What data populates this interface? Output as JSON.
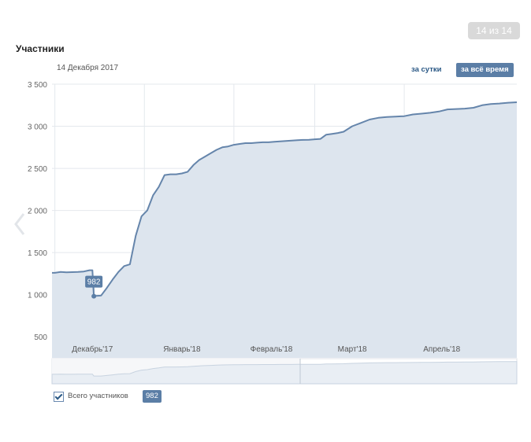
{
  "header": {
    "counter": "14 из 14",
    "title": "Участники",
    "date": "14 Декабря 2017",
    "tabs": [
      {
        "label": "за сутки",
        "active": false
      },
      {
        "label": "за всё время",
        "active": true
      }
    ]
  },
  "legend": {
    "label": "Всего участников",
    "value": "982",
    "checked": true
  },
  "colors": {
    "line": "#6585ab",
    "fill": "#dde5ee",
    "grid": "#e4e8ed",
    "accent": "#5b7ea6"
  },
  "chart_data": {
    "type": "area",
    "title": "Участники",
    "xlabel": "",
    "ylabel": "",
    "ylim": [
      250,
      3500
    ],
    "yticks": [
      500,
      1000,
      1500,
      2000,
      2500,
      3000,
      3500
    ],
    "ytick_labels": [
      "500",
      "1 000",
      "1 500",
      "2 000",
      "2 500",
      "3 000",
      "3 500"
    ],
    "xticks": [
      {
        "label": "Декабрь'17",
        "x": 13
      },
      {
        "label": "Январь'18",
        "x": 44
      },
      {
        "label": "Февраль'18",
        "x": 75
      },
      {
        "label": "Март'18",
        "x": 103
      },
      {
        "label": "Апрель'18",
        "x": 134
      }
    ],
    "xlim": [
      -1,
      160
    ],
    "grid": true,
    "highlight": {
      "x": 13.5,
      "y": 982,
      "label": "982"
    },
    "series": [
      {
        "name": "Всего участников",
        "x": [
          -1,
          0,
          2,
          4,
          6,
          8,
          10,
          12,
          13,
          13.5,
          14,
          16,
          18,
          20,
          22,
          24,
          26,
          28,
          30,
          32,
          34,
          36,
          38,
          40,
          42,
          44,
          46,
          48,
          50,
          52,
          54,
          56,
          58,
          60,
          62,
          64,
          66,
          68,
          70,
          72,
          74,
          76,
          78,
          80,
          82,
          84,
          86,
          88,
          90,
          92,
          94,
          96,
          98,
          100,
          103,
          106,
          109,
          112,
          115,
          118,
          121,
          124,
          127,
          130,
          133,
          136,
          139,
          142,
          145,
          148,
          151,
          154,
          157,
          160
        ],
        "values": [
          1260,
          1260,
          1270,
          1265,
          1268,
          1270,
          1275,
          1290,
          1290,
          982,
          985,
          990,
          1080,
          1180,
          1270,
          1340,
          1360,
          1700,
          1930,
          2000,
          2180,
          2280,
          2420,
          2430,
          2430,
          2440,
          2460,
          2540,
          2600,
          2640,
          2680,
          2720,
          2750,
          2760,
          2780,
          2790,
          2800,
          2800,
          2805,
          2810,
          2810,
          2815,
          2820,
          2825,
          2830,
          2835,
          2838,
          2840,
          2845,
          2850,
          2900,
          2910,
          2920,
          2935,
          3000,
          3040,
          3080,
          3100,
          3110,
          3115,
          3120,
          3140,
          3150,
          3160,
          3175,
          3200,
          3205,
          3210,
          3220,
          3250,
          3265,
          3270,
          3280,
          3285
        ]
      }
    ]
  }
}
